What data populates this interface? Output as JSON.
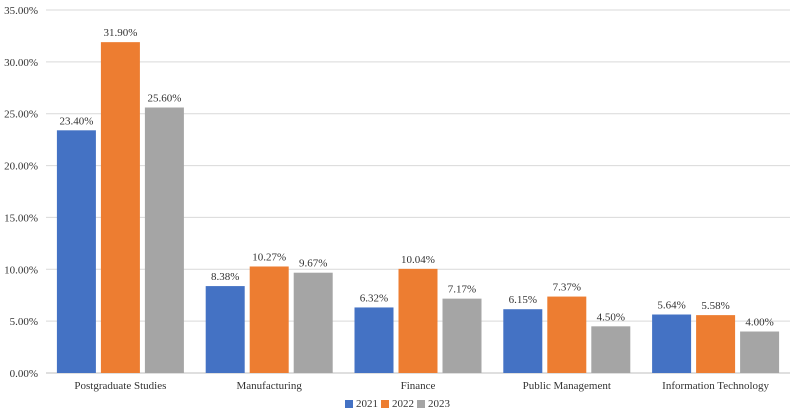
{
  "chart_data": {
    "type": "bar",
    "title": "",
    "xlabel": "",
    "ylabel": "",
    "categories": [
      "Postgraduate Studies",
      "Manufacturing",
      "Finance",
      "Public Management",
      "Information Technology"
    ],
    "series": [
      {
        "name": "2021",
        "color": "#4472c4",
        "values": [
          23.4,
          8.38,
          6.32,
          6.15,
          5.64
        ],
        "labels": [
          "23.40%",
          "8.38%",
          "6.32%",
          "6.15%",
          "5.64%"
        ]
      },
      {
        "name": "2022",
        "color": "#ed7d31",
        "values": [
          31.9,
          10.27,
          10.04,
          7.37,
          5.58
        ],
        "labels": [
          "31.90%",
          "10.27%",
          "10.04%",
          "7.37%",
          "5.58%"
        ]
      },
      {
        "name": "2023",
        "color": "#a5a5a5",
        "values": [
          25.6,
          9.67,
          7.17,
          4.5,
          4.0
        ],
        "labels": [
          "25.60%",
          "9.67%",
          "7.17%",
          "4.50%",
          "4.00%"
        ]
      }
    ],
    "ylim": [
      0,
      35
    ],
    "yticks": [
      {
        "value": 0,
        "label": "0.00%"
      },
      {
        "value": 5,
        "label": "5.00%"
      },
      {
        "value": 10,
        "label": "10.00%"
      },
      {
        "value": 15,
        "label": "15.00%"
      },
      {
        "value": 20,
        "label": "20.00%"
      },
      {
        "value": 25,
        "label": "25.00%"
      },
      {
        "value": 30,
        "label": "30.00%"
      },
      {
        "value": 35,
        "label": "35.00%"
      }
    ],
    "grid": true,
    "legend_position": "bottom"
  }
}
